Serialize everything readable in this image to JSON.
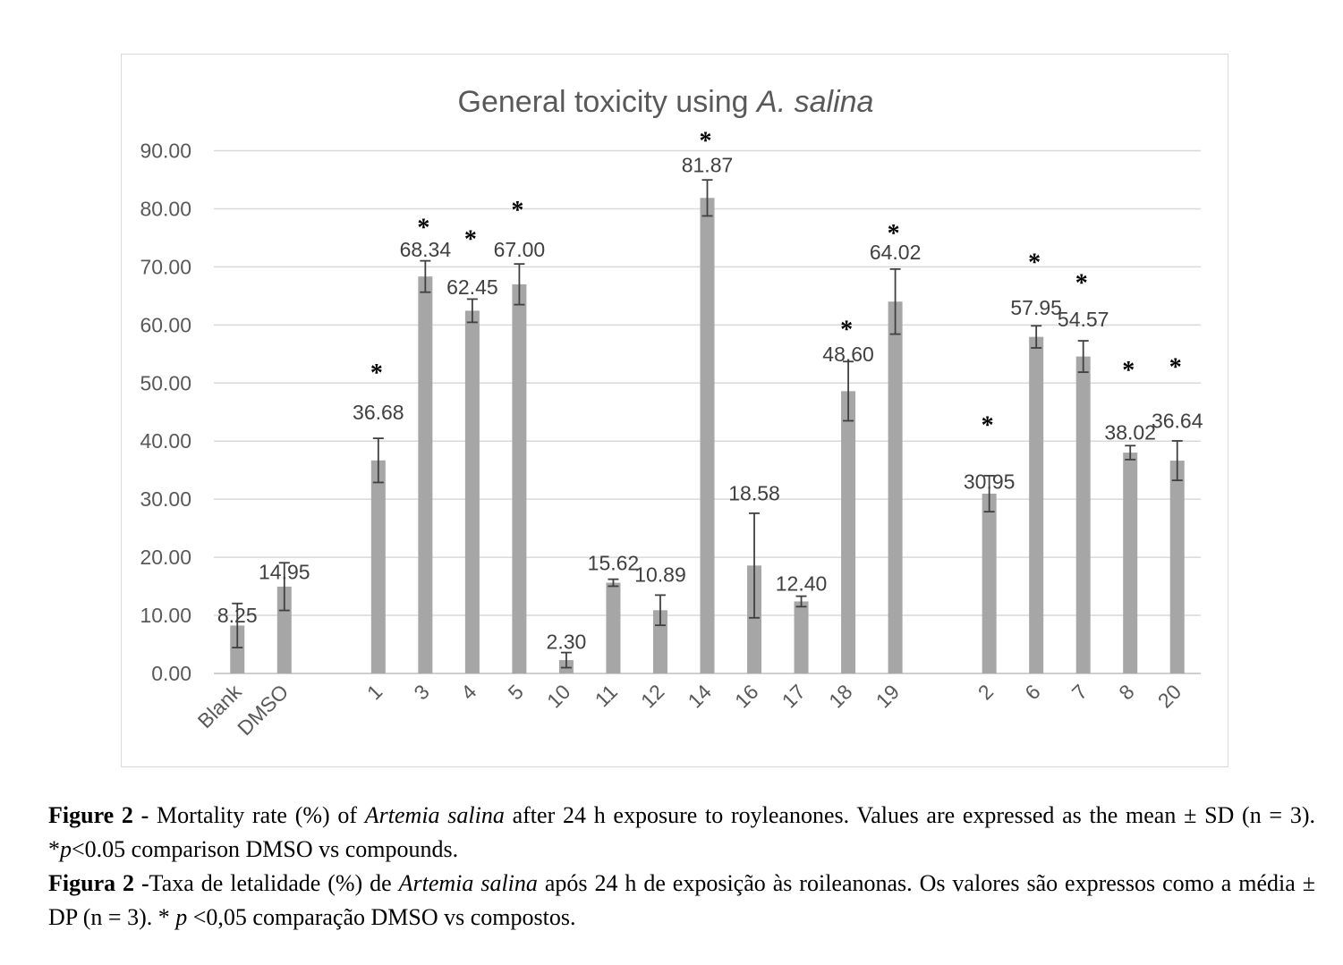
{
  "chart_data": {
    "type": "bar",
    "title": "General toxicity using ",
    "title_italic": "A. salina",
    "xlabel": "",
    "ylabel": "",
    "ylim": [
      0,
      90
    ],
    "yticks": [
      0,
      10,
      20,
      30,
      40,
      50,
      60,
      70,
      80,
      90
    ],
    "ytick_labels": [
      "0.00",
      "10.00",
      "20.00",
      "30.00",
      "40.00",
      "50.00",
      "60.00",
      "70.00",
      "80.00",
      "90.00"
    ],
    "grid": true,
    "bar_color": "#a6a6a6",
    "categories": [
      "Blank",
      "DMSO",
      "",
      "1",
      "3",
      "4",
      "5",
      "10",
      "11",
      "12",
      "14",
      "16",
      "17",
      "18",
      "19",
      "",
      "2",
      "6",
      "7",
      "8",
      "20"
    ],
    "values": [
      8.25,
      14.95,
      null,
      36.68,
      68.34,
      62.45,
      67.0,
      2.3,
      15.62,
      10.89,
      81.87,
      18.58,
      12.4,
      48.6,
      64.02,
      null,
      30.95,
      57.95,
      54.57,
      38.02,
      36.64
    ],
    "value_labels": [
      "8.25",
      "14.95",
      "",
      "36.68",
      "68.34",
      "62.45",
      "67.00",
      "2.30",
      "15.62",
      "10.89",
      "81.87",
      "18.58",
      "12.40",
      "48.60",
      "64.02",
      "",
      "30.95",
      "57.95",
      "54.57",
      "38.02",
      "36.64"
    ],
    "sd": [
      3.8,
      4.1,
      null,
      3.8,
      2.7,
      2.0,
      3.5,
      1.3,
      0.6,
      2.6,
      3.1,
      9.0,
      0.9,
      5.1,
      5.6,
      null,
      3.1,
      1.9,
      2.7,
      1.2,
      3.4
    ],
    "significant": [
      false,
      false,
      false,
      true,
      true,
      true,
      true,
      false,
      false,
      false,
      true,
      false,
      false,
      true,
      true,
      false,
      true,
      true,
      true,
      true,
      true
    ],
    "significance_marker": "*",
    "value_label_positions": [
      10.0,
      17.5,
      null,
      45.0,
      73.0,
      66.5,
      73.0,
      5.5,
      19.0,
      17.0,
      87.5,
      31.0,
      15.5,
      55.0,
      72.5,
      null,
      33.0,
      63.0,
      61.0,
      41.5,
      43.5
    ],
    "marker_positions": [
      null,
      null,
      null,
      52.5,
      77.5,
      75.5,
      80.5,
      null,
      null,
      null,
      92.5,
      null,
      null,
      60.0,
      76.5,
      null,
      43.5,
      71.5,
      68.0,
      53.0,
      53.5
    ]
  },
  "caption": {
    "en_label": "Figure 2 -",
    "en_text_1": " Mortality rate (%) of ",
    "en_species": "Artemia salina",
    "en_text_2": " after 24 h exposure to royleanones. Values are expressed as the mean  ± SD (n = 3). *",
    "en_p": "p",
    "en_text_3": "<0.05 comparison DMSO vs compounds.",
    "pt_label": "Figura 2 -",
    "pt_text_1": "Taxa de letalidade (%) de ",
    "pt_species": "Artemia salina",
    "pt_text_2": " após 24 h de exposição às roileanonas. Os valores são expressos como a média ± DP (n = 3). * ",
    "pt_p": "p",
    "pt_text_3": " <0,05 comparação DMSO vs compostos."
  }
}
